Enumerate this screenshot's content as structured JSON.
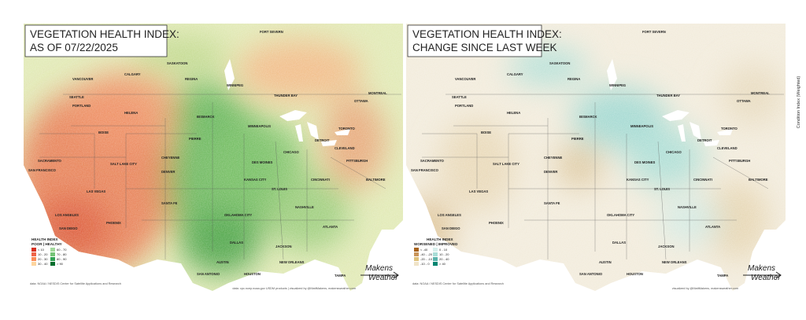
{
  "panels": [
    {
      "title_lines": [
        "VEGETATION HEALTH INDEX:",
        "AS OF 07/22/2025"
      ],
      "legend": {
        "title": "HEALTH INDEX",
        "subtitle": "POOR | HEALTHY",
        "items": [
          {
            "label": "< 10",
            "color": "#d7301f"
          },
          {
            "label": "10 - 20",
            "color": "#ef6548"
          },
          {
            "label": "20 - 30",
            "color": "#fc8d59"
          },
          {
            "label": "30 - 40",
            "color": "#fdd49e"
          },
          {
            "label": "60 - 70",
            "color": "#a1d99b"
          },
          {
            "label": "70 - 80",
            "color": "#74c476"
          },
          {
            "label": "80 - 90",
            "color": "#31a354"
          },
          {
            "label": "> 90",
            "color": "#006d2c"
          }
        ]
      },
      "credit_left": "data: NOAA / NESDIS Center for Satellite Applications and Research",
      "credit_right": "data: cpc.ncep.noaa.gov USDM products | visualized by @MattMakens, makensweather.com"
    },
    {
      "title_lines": [
        "VEGETATION HEALTH INDEX:",
        "CHANGE SINCE LAST WEEK"
      ],
      "legend": {
        "title": "HEALTH INDEX",
        "subtitle": "WORSENED | IMPROVED",
        "items": [
          {
            "label": "< -40",
            "color": "#a6611a"
          },
          {
            "label": "-40 - -20",
            "color": "#c9955a"
          },
          {
            "label": "-20 - -10",
            "color": "#dfc27d"
          },
          {
            "label": "-10 - 0",
            "color": "#f0e4c8"
          },
          {
            "label": "0 - 10",
            "color": "#d7efec"
          },
          {
            "label": "10 - 20",
            "color": "#a8ddd6"
          },
          {
            "label": "20 - 40",
            "color": "#5ab4ac"
          },
          {
            "label": "> 40",
            "color": "#018571"
          }
        ]
      },
      "credit_left": "data: NOAA / NESDIS Center for Satellite Applications and Research",
      "credit_right": "visualized by @MattMakens, makensweather.com"
    }
  ],
  "logo": [
    "Makens",
    "Weather"
  ],
  "side_label": "Condition Index (Weighted)",
  "cities": [
    "FORT SEVERN",
    "SASKATOON",
    "CALGARY",
    "REGINA",
    "WINNIPEG",
    "VANCOUVER",
    "SEATTLE",
    "PORTLAND",
    "THUNDER BAY",
    "HELENA",
    "BISMARCK",
    "BOISE",
    "PIERRE",
    "MINNEAPOLIS",
    "TORONTO",
    "OTTAWA",
    "MONTREAL",
    "SALT LAKE CITY",
    "CHEYENNE",
    "DES MOINES",
    "CHICAGO",
    "DETROIT",
    "CLEVELAND",
    "PITTSBURGH",
    "SACRAMENTO",
    "SAN FRANCISCO",
    "DENVER",
    "KANSAS CITY",
    "ST. LOUIS",
    "CINCINNATI",
    "BALTIMORE",
    "LAS VEGAS",
    "NASHVILLE",
    "LOS ANGELES",
    "SANTA FE",
    "OKLAHOMA CITY",
    "PHOENIX",
    "ATLANTA",
    "DALLAS",
    "JACKSON",
    "SAN DIEGO",
    "AUSTIN",
    "NEW ORLEANS",
    "SAN ANTONIO",
    "HOUSTON",
    "TAMPA"
  ]
}
